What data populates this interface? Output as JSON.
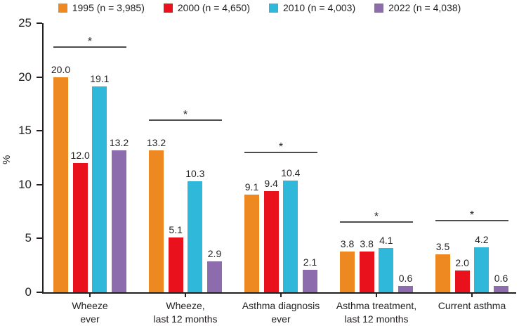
{
  "chart_data": {
    "type": "bar",
    "title": "",
    "xlabel": "",
    "ylabel": "%",
    "ylim": [
      0,
      25
    ],
    "yticks": [
      0,
      5,
      10,
      15,
      20,
      25
    ],
    "grid": false,
    "legend_position": "top",
    "categories": [
      {
        "line1": "Wheeze",
        "line2": "ever"
      },
      {
        "line1": "Wheeze,",
        "line2": "last 12 months"
      },
      {
        "line1": "Asthma diagnosis",
        "line2": "ever"
      },
      {
        "line1": "Asthma treatment,",
        "line2": "last 12 months"
      },
      {
        "line1": "Current asthma",
        "line2": ""
      }
    ],
    "series": [
      {
        "name": "1995 (n = 3,985)",
        "color": "#ee8922",
        "values": [
          "20.0",
          "13.2",
          "9.1",
          "3.8",
          "3.5"
        ]
      },
      {
        "name": "2000 (n = 4,650)",
        "color": "#e8111c",
        "values": [
          "12.0",
          "5.1",
          "9.4",
          "3.8",
          "2.0"
        ]
      },
      {
        "name": "2010 (n = 4,003)",
        "color": "#2fb8da",
        "values": [
          "19.1",
          "10.3",
          "10.4",
          "4.1",
          "4.2"
        ]
      },
      {
        "name": "2022 (n = 4,038)",
        "color": "#8d6cae",
        "values": [
          "13.2",
          "2.9",
          "2.1",
          "0.6",
          "0.6"
        ]
      }
    ],
    "significance": {
      "symbol": "*",
      "heights_pct": [
        22.7,
        15.9,
        12.9,
        6.45,
        6.6
      ]
    }
  }
}
